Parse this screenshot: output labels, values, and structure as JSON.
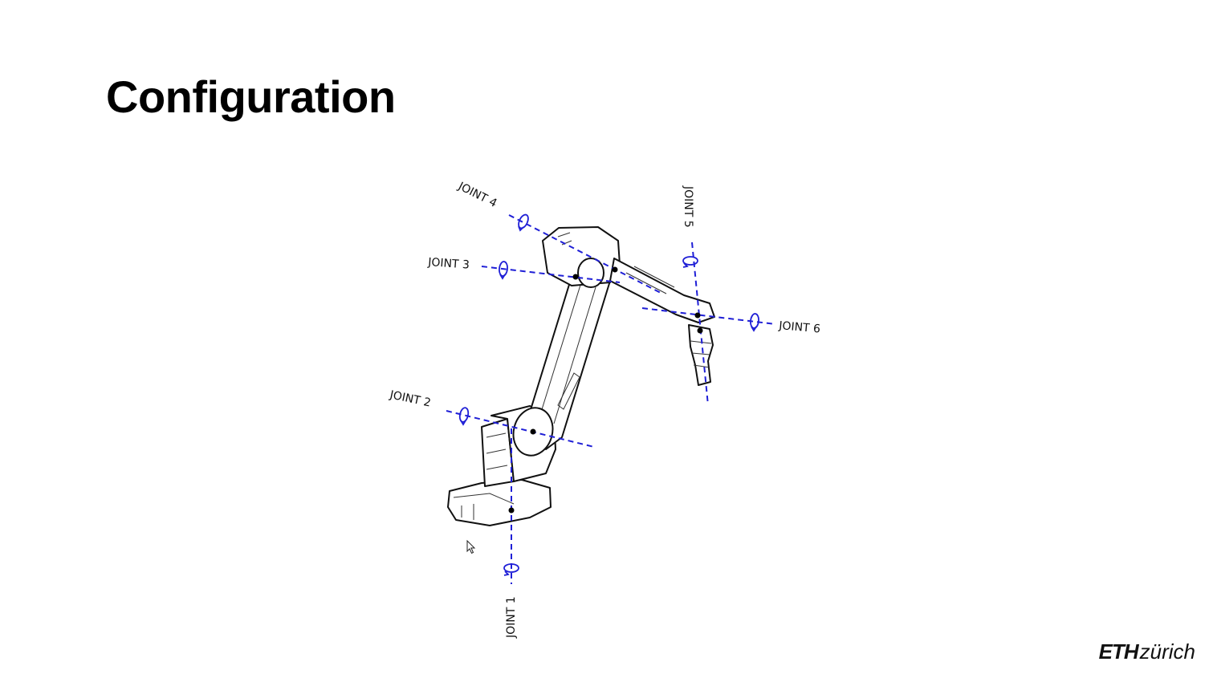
{
  "slide": {
    "title": "Configuration"
  },
  "diagram": {
    "joints": [
      {
        "id": "joint1",
        "label": "JOINT 1"
      },
      {
        "id": "joint2",
        "label": "JOINT 2"
      },
      {
        "id": "joint3",
        "label": "JOINT 3"
      },
      {
        "id": "joint4",
        "label": "JOINT 4"
      },
      {
        "id": "joint5",
        "label": "JOINT 5"
      },
      {
        "id": "joint6",
        "label": "JOINT 6"
      }
    ],
    "axis_color": "#1f1fd6"
  },
  "logo": {
    "eth": "ETH",
    "zurich": "zürich"
  }
}
